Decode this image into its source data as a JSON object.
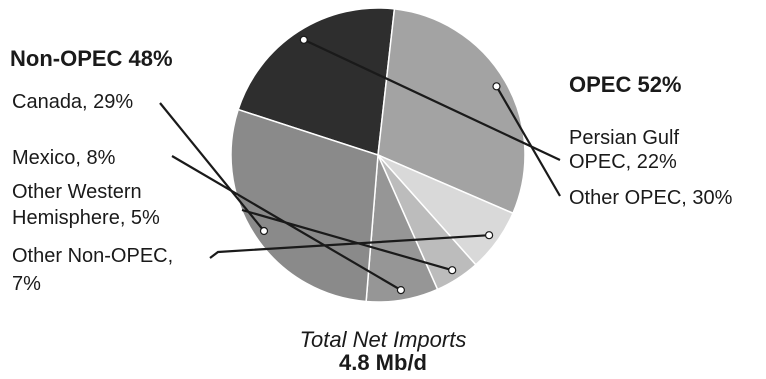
{
  "chart_data": {
    "type": "pie",
    "groups": {
      "non_opec": {
        "title": "Non-OPEC 48%"
      },
      "opec": {
        "title": "OPEC 52%"
      }
    },
    "slices": [
      {
        "key": "persian_gulf",
        "label_lines": [
          "Persian Gulf",
          "OPEC, 22%"
        ],
        "value": 22,
        "color": "#2e2e2e",
        "group": "OPEC"
      },
      {
        "key": "other_opec",
        "label_lines": [
          "Other OPEC, 30%"
        ],
        "value": 30,
        "color": "#a3a3a3",
        "group": "OPEC"
      },
      {
        "key": "other_non_opec",
        "label_lines": [
          "Other Non-OPEC,",
          "7%"
        ],
        "value": 7,
        "color": "#d9d9d9",
        "group": "Non-OPEC"
      },
      {
        "key": "other_western",
        "label_lines": [
          "Other Western",
          "Hemisphere, 5%"
        ],
        "value": 5,
        "color": "#bcbcbc",
        "group": "Non-OPEC"
      },
      {
        "key": "mexico",
        "label_lines": [
          "Mexico, 8%"
        ],
        "value": 8,
        "color": "#969696",
        "group": "Non-OPEC"
      },
      {
        "key": "canada",
        "label_lines": [
          "Canada, 29%"
        ],
        "value": 29,
        "color": "#8a8a8a",
        "group": "Non-OPEC"
      }
    ],
    "caption": {
      "line1": "Total Net Imports",
      "line2": "4.8 Mb/d"
    }
  }
}
